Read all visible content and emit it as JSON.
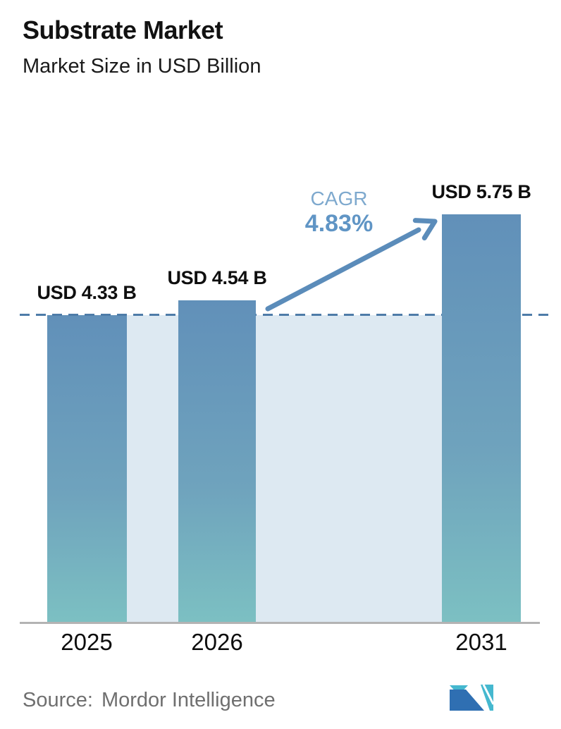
{
  "header": {
    "title": "Substrate Market",
    "subtitle": "Market Size in USD Billion"
  },
  "chart_data": {
    "type": "bar",
    "title": "Substrate Market",
    "subtitle": "Market Size in USD Billion",
    "unit": "USD Billion",
    "categories": [
      "2025",
      "2026",
      "2031"
    ],
    "values": [
      4.33,
      4.54,
      5.75
    ],
    "value_labels": [
      "USD 4.33 B",
      "USD 4.54 B",
      "USD 5.75 B"
    ],
    "ylim": [
      0,
      5.75
    ],
    "grid": false,
    "legend": false,
    "reference_line": {
      "value": 4.33,
      "style": "dashed"
    },
    "annotations": [
      {
        "type": "growth-arrow",
        "label": "CAGR",
        "value": "4.83%",
        "from_category": "2026",
        "to_category": "2031"
      }
    ]
  },
  "cagr": {
    "label": "CAGR",
    "value": "4.83%"
  },
  "footer": {
    "source_label": "Source:",
    "source_name": "Mordor Intelligence"
  },
  "colors": {
    "bar_gradient_top": "#6190b9",
    "bar_gradient_bottom": "#7cc0c2",
    "background_band": "#dde9f2",
    "dashed_line": "#4e7ca8",
    "arrow": "#5b8cba",
    "cagr_label": "#7ea9ce",
    "cagr_value": "#6095c5",
    "axis_line": "#b3b3b3",
    "title_text": "#121212",
    "source_text": "#6f6f6f",
    "logo_blue": "#2f6fb2",
    "logo_teal": "#45b8cf"
  }
}
